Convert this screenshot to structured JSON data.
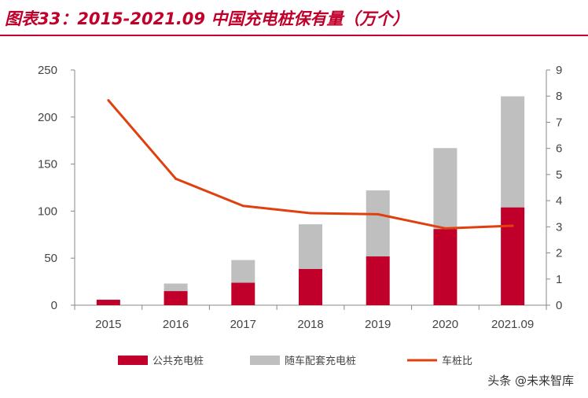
{
  "chart_data": {
    "type": "bar",
    "title": "图表33：2015-2021.09 中国充电桩保有量（万个）",
    "categories": [
      "2015",
      "2016",
      "2017",
      "2018",
      "2019",
      "2020",
      "2021.09"
    ],
    "series": [
      {
        "name": "公共充电桩",
        "type": "bar",
        "stacked": true,
        "axis": "left",
        "color": "#c0002a",
        "values": [
          5.8,
          15,
          24,
          38.6,
          52,
          81,
          104
        ]
      },
      {
        "name": "随车配套充电桩",
        "type": "bar",
        "stacked": true,
        "axis": "left",
        "color": "#bfbfbf",
        "values": [
          0,
          8,
          24,
          47.4,
          70,
          86,
          118
        ]
      },
      {
        "name": "车桩比",
        "type": "line",
        "axis": "right",
        "color": "#e0400f",
        "values": [
          7.84,
          4.84,
          3.8,
          3.52,
          3.48,
          2.94,
          3.04
        ]
      }
    ],
    "ylim_left": [
      0,
      250
    ],
    "yticks_left": [
      0,
      50,
      100,
      150,
      200,
      250
    ],
    "ylim_right": [
      0,
      9
    ],
    "yticks_right": [
      0,
      1,
      2,
      3,
      4,
      5,
      6,
      7,
      8,
      9
    ],
    "grid": false,
    "legend_position": "bottom"
  },
  "watermark": "头条 @未来智库"
}
